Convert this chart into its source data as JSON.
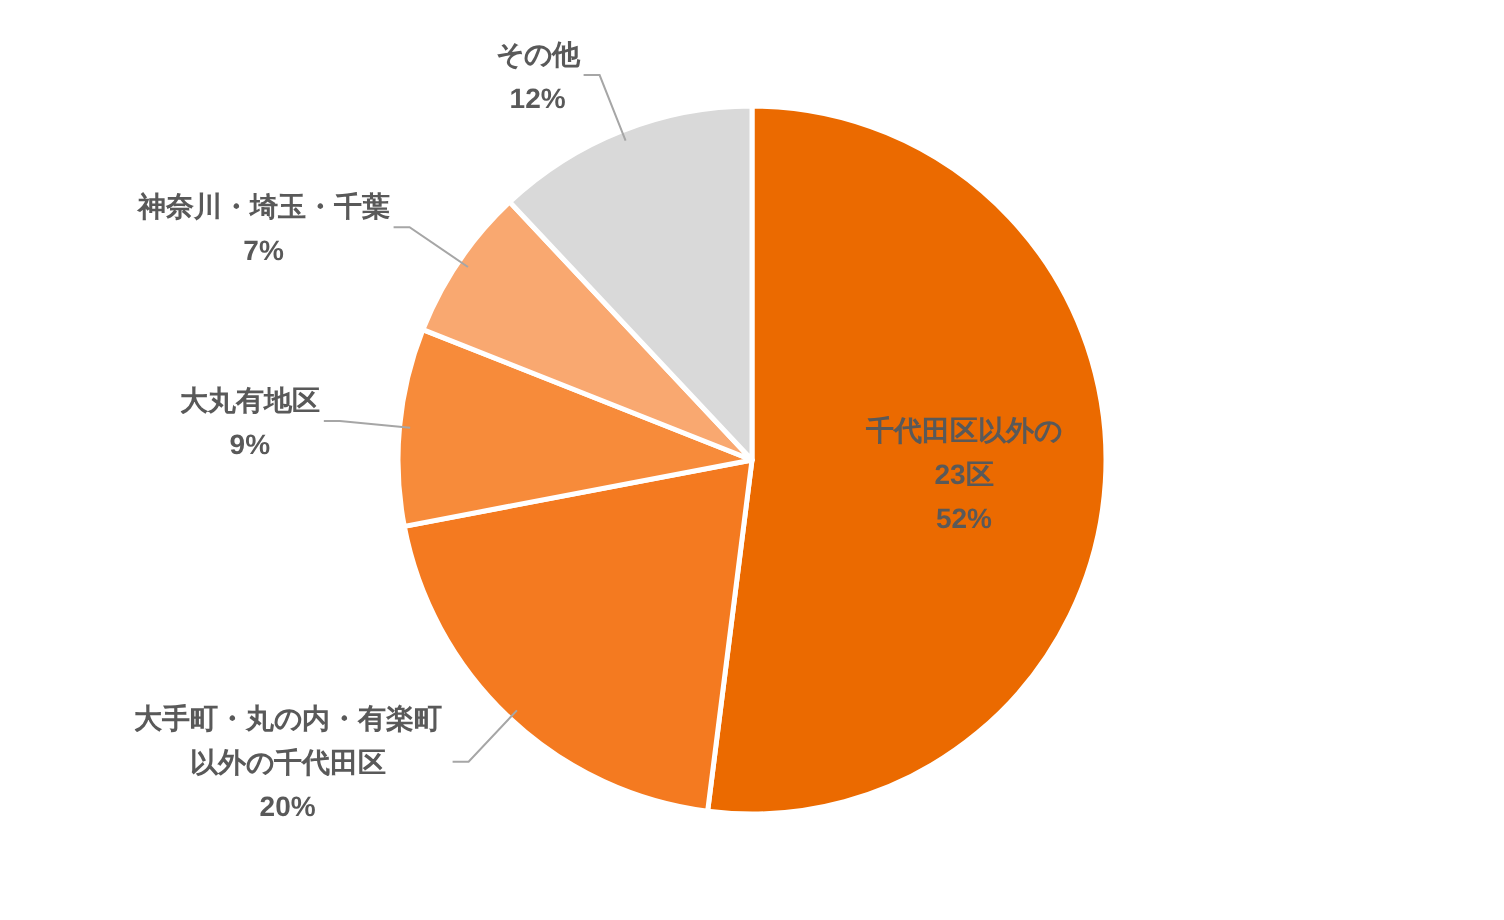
{
  "chart_data": {
    "type": "pie",
    "categories": [
      "千代田区以外の23区",
      "大手町・丸の内・有楽町以外の千代田区",
      "大丸有地区",
      "神奈川・埼玉・千葉",
      "その他"
    ],
    "values": [
      52,
      20,
      9,
      7,
      12
    ],
    "colors": [
      "#eb6a00",
      "#f47a20",
      "#f78b3a",
      "#f9a870",
      "#d9d9d9"
    ],
    "value_labels": [
      "52%",
      "20%",
      "9%",
      "7%",
      "12%"
    ]
  }
}
